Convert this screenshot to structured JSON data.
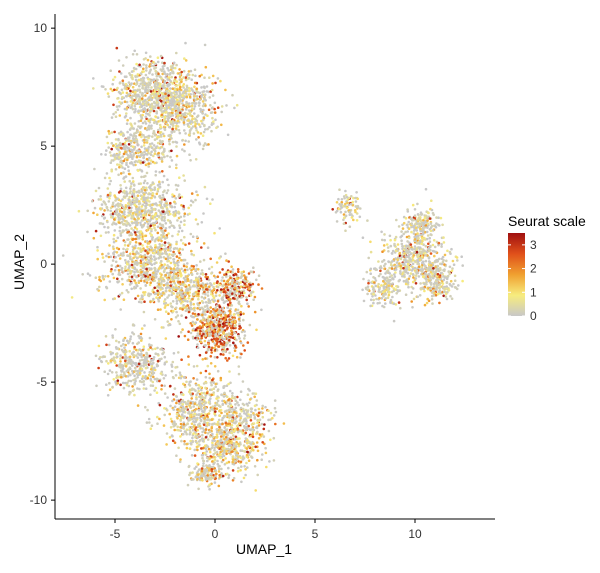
{
  "chart_data": {
    "type": "scatter",
    "xlabel": "UMAP_1",
    "ylabel": "UMAP_2",
    "xlim": [
      -8,
      14
    ],
    "ylim": [
      -10.8,
      10.6
    ],
    "x_ticks": [
      -5,
      0,
      5,
      10
    ],
    "y_ticks": [
      -10,
      -5,
      0,
      5,
      10
    ],
    "x_tick_labels": [
      "-5",
      "0",
      "5",
      "10"
    ],
    "y_tick_labels": [
      "-10",
      "-5",
      "0",
      "5",
      "10"
    ],
    "grid": false,
    "legend": {
      "title": "Seurat scale",
      "placement": "right",
      "type": "colorbar",
      "breaks": [
        3,
        2,
        1,
        0
      ],
      "break_labels": [
        "3",
        "2",
        "1",
        "0"
      ],
      "range": [
        0,
        3.5
      ],
      "colors": [
        "#c8c8c8",
        "#f7ec7e",
        "#f0a030",
        "#e0501a",
        "#a01010"
      ]
    },
    "regions": [
      {
        "x": -3.1,
        "y": 7.2,
        "sx": 1.4,
        "sy": 1.0,
        "n": 700,
        "mean": 0.6
      },
      {
        "x": -1.5,
        "y": 6.6,
        "sx": 1.2,
        "sy": 0.9,
        "n": 420,
        "mean": 0.7
      },
      {
        "x": -4.5,
        "y": 4.8,
        "sx": 0.6,
        "sy": 0.6,
        "n": 150,
        "mean": 0.5
      },
      {
        "x": -3.3,
        "y": 5.0,
        "sx": 1.0,
        "sy": 0.6,
        "n": 180,
        "mean": 0.7
      },
      {
        "x": -3.6,
        "y": 2.4,
        "sx": 1.5,
        "sy": 0.9,
        "n": 650,
        "mean": 0.5
      },
      {
        "x": -3.3,
        "y": 0.0,
        "sx": 1.6,
        "sy": 1.0,
        "n": 650,
        "mean": 0.8
      },
      {
        "x": -1.3,
        "y": -1.2,
        "sx": 1.2,
        "sy": 0.9,
        "n": 420,
        "mean": 1.2
      },
      {
        "x": 0.2,
        "y": -2.8,
        "sx": 0.8,
        "sy": 0.8,
        "n": 500,
        "mean": 2.2
      },
      {
        "x": 1.0,
        "y": -1.0,
        "sx": 0.7,
        "sy": 0.6,
        "n": 220,
        "mean": 1.8
      },
      {
        "x": -4.0,
        "y": -4.2,
        "sx": 1.1,
        "sy": 0.8,
        "n": 380,
        "mean": 0.4
      },
      {
        "x": -0.8,
        "y": -6.3,
        "sx": 1.4,
        "sy": 1.0,
        "n": 550,
        "mean": 0.9
      },
      {
        "x": 0.6,
        "y": -7.7,
        "sx": 1.2,
        "sy": 0.8,
        "n": 400,
        "mean": 1.0
      },
      {
        "x": -0.4,
        "y": -8.9,
        "sx": 0.6,
        "sy": 0.3,
        "n": 120,
        "mean": 1.2
      },
      {
        "x": 1.6,
        "y": -6.5,
        "sx": 0.8,
        "sy": 0.6,
        "n": 160,
        "mean": 0.7
      },
      {
        "x": 10.0,
        "y": 0.2,
        "sx": 1.1,
        "sy": 1.0,
        "n": 520,
        "mean": 0.5
      },
      {
        "x": 8.3,
        "y": -1.0,
        "sx": 0.6,
        "sy": 0.6,
        "n": 150,
        "mean": 0.4
      },
      {
        "x": 11.1,
        "y": -0.7,
        "sx": 0.6,
        "sy": 0.6,
        "n": 180,
        "mean": 0.7
      },
      {
        "x": 10.3,
        "y": 1.7,
        "sx": 0.5,
        "sy": 0.5,
        "n": 130,
        "mean": 0.6
      },
      {
        "x": 6.6,
        "y": 2.4,
        "sx": 0.5,
        "sy": 0.5,
        "n": 80,
        "mean": 0.5
      }
    ]
  }
}
